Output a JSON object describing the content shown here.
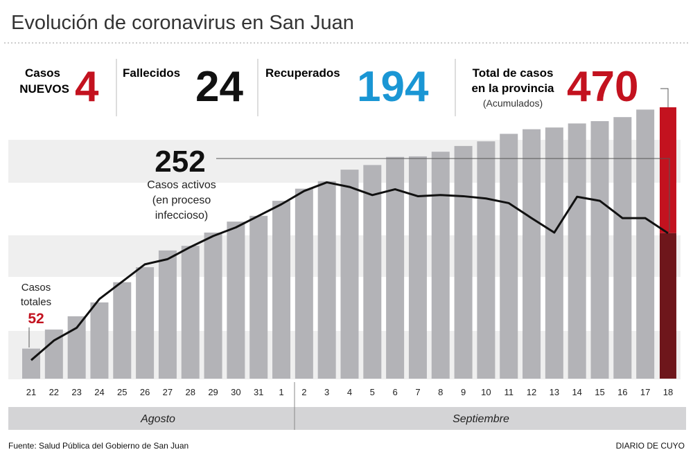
{
  "title": "Evolución de coronavirus en San Juan",
  "stats": {
    "new_label_1": "Casos",
    "new_label_2": "NUEVOS",
    "new_value": "4",
    "deaths_label": "Fallecidos",
    "deaths_value": "24",
    "recovered_label": "Recuperados",
    "recovered_value": "194",
    "total_label_1": "Total de casos",
    "total_label_2": "en la provincia",
    "total_label_3": "(Acumulados)",
    "total_value": "470"
  },
  "annotations": {
    "active_value": "252",
    "active_label_1": "Casos activos",
    "active_label_2": "(en proceso",
    "active_label_3": "infeccioso)",
    "start_label_1": "Casos",
    "start_label_2": "totales",
    "start_value": "52"
  },
  "colors": {
    "bar": "#b3b3b7",
    "highlight_top": "#c3121f",
    "highlight_bottom": "#6e161b",
    "line": "#111111",
    "recovered": "#1a96d4",
    "red": "#c3121f",
    "band": "#efefef"
  },
  "chart_data": {
    "type": "bar",
    "categories": [
      "21",
      "22",
      "23",
      "24",
      "25",
      "26",
      "27",
      "28",
      "29",
      "30",
      "31",
      "1",
      "2",
      "3",
      "4",
      "5",
      "6",
      "7",
      "8",
      "9",
      "10",
      "11",
      "12",
      "13",
      "14",
      "15",
      "16",
      "17",
      "18"
    ],
    "months": [
      {
        "label": "Agosto"
      },
      {
        "label": "Septiembre"
      }
    ],
    "series": [
      {
        "name": "Casos totales",
        "type": "bar",
        "values": [
          52,
          85,
          108,
          132,
          167,
          193,
          222,
          230,
          253,
          272,
          282,
          308,
          329,
          342,
          362,
          370,
          384,
          385,
          393,
          403,
          411,
          424,
          432,
          435,
          442,
          446,
          453,
          466,
          470
        ]
      },
      {
        "name": "Casos activos",
        "type": "line",
        "values": [
          32,
          66,
          88,
          138,
          168,
          198,
          207,
          228,
          247,
          262,
          282,
          302,
          325,
          340,
          332,
          318,
          328,
          316,
          318,
          316,
          312,
          304,
          278,
          253,
          315,
          308,
          278,
          278,
          252
        ]
      }
    ],
    "ylim": [
      0,
      470
    ],
    "grid": false
  },
  "footer": {
    "source": "Fuente: Salud Pública del Gobierno de San Juan",
    "brand": "DIARIO DE CUYO"
  }
}
